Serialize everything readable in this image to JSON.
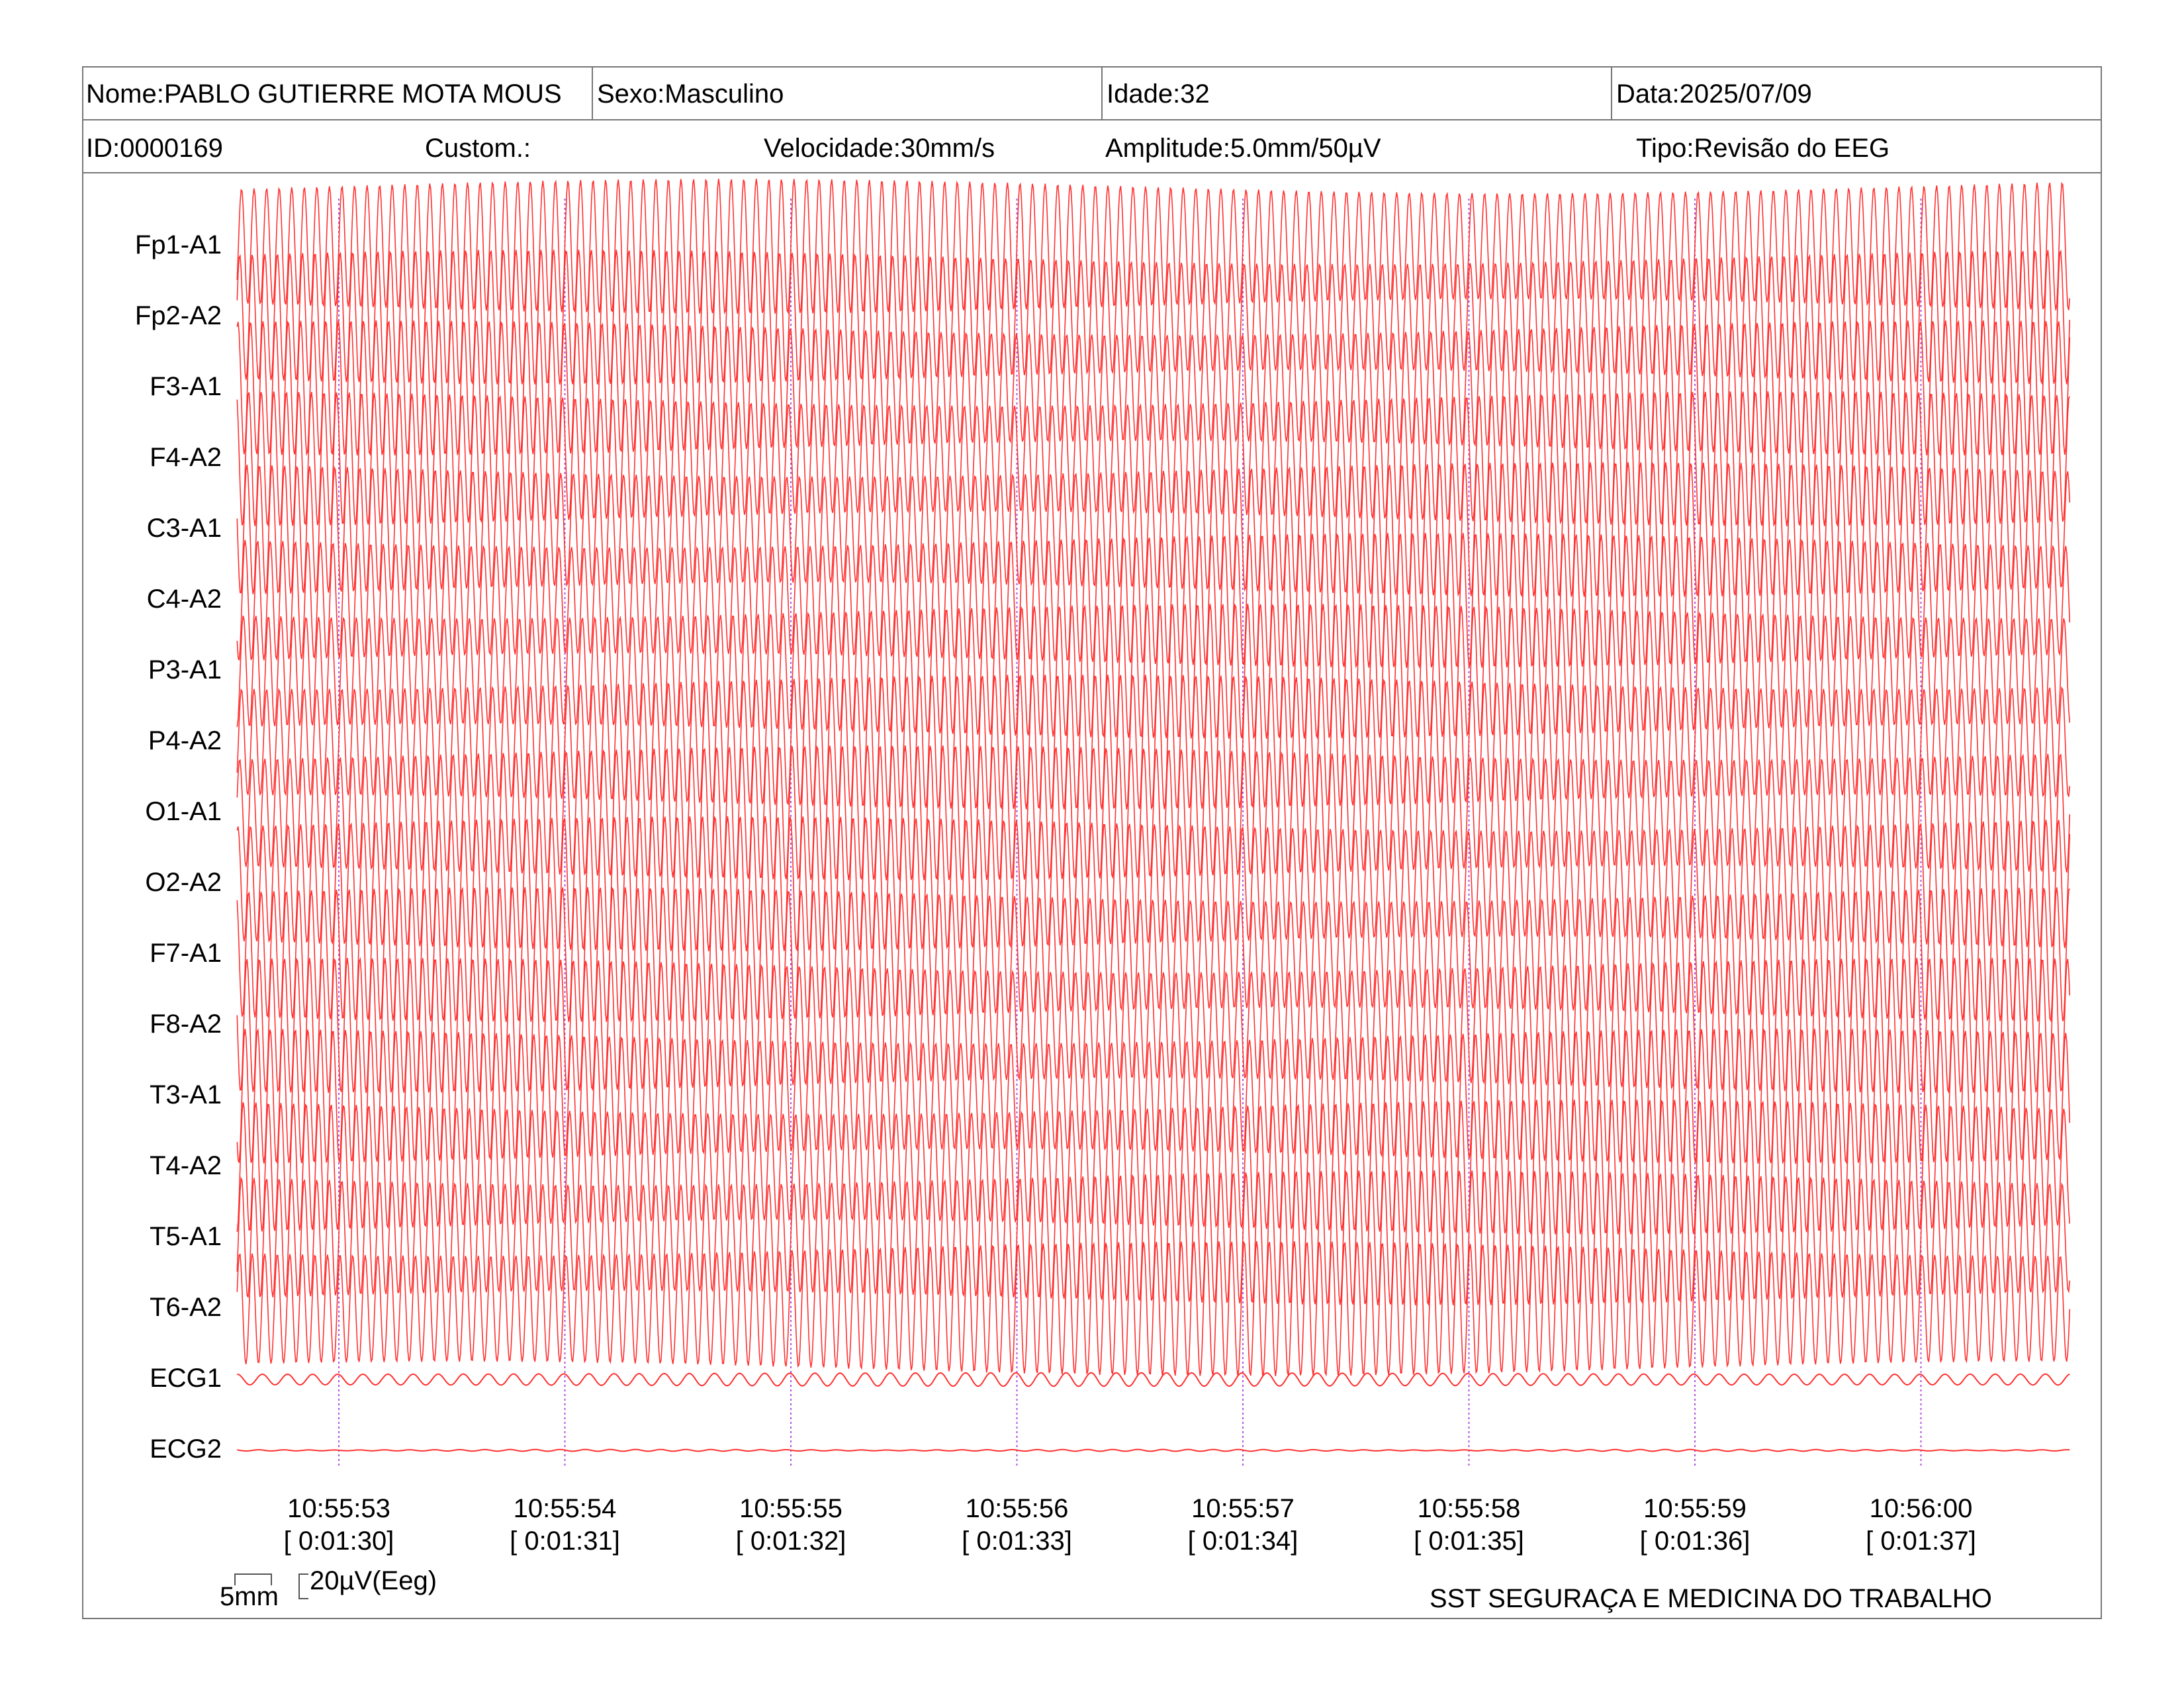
{
  "header": {
    "name": "Nome:PABLO GUTIERRE MOTA MOUS",
    "sex": "Sexo:Masculino",
    "age": "Idade:32",
    "date": "Data:2025/07/09",
    "id": "ID:0000169",
    "custom": "Custom.:",
    "speed": "Velocidade:30mm/s",
    "amplitude": "Amplitude:5.0mm/50µV",
    "type": "Tipo:Revisão do EEG"
  },
  "colors": {
    "trace": "#ff3030",
    "time_marker": "#b050e0",
    "border": "#777777"
  },
  "chart_data": {
    "type": "line",
    "channels": [
      "Fp1-A1",
      "Fp2-A2",
      "F3-A1",
      "F4-A2",
      "C3-A1",
      "C4-A2",
      "P3-A1",
      "P4-A2",
      "O1-A1",
      "O2-A2",
      "F7-A1",
      "F8-A2",
      "T3-A1",
      "T4-A2",
      "T5-A1",
      "T6-A2",
      "ECG1",
      "ECG2"
    ],
    "time_ticks": [
      {
        "clock": "10:55:53",
        "elapsed": "[ 0:01:30]"
      },
      {
        "clock": "10:55:54",
        "elapsed": "[ 0:01:31]"
      },
      {
        "clock": "10:55:55",
        "elapsed": "[ 0:01:32]"
      },
      {
        "clock": "10:55:56",
        "elapsed": "[ 0:01:33]"
      },
      {
        "clock": "10:55:57",
        "elapsed": "[ 0:01:34]"
      },
      {
        "clock": "10:55:58",
        "elapsed": "[ 0:01:35]"
      },
      {
        "clock": "10:55:59",
        "elapsed": "[ 0:01:36]"
      },
      {
        "clock": "10:56:00",
        "elapsed": "[ 0:01:37]"
      }
    ],
    "x_range_seconds": [
      -0.45,
      7.7
    ],
    "eeg_frequency_hz": 18,
    "ecg_frequency_hz": 9,
    "eeg_amplitude_uv": 80,
    "ecg1_amplitude_uv": 8,
    "ecg2_amplitude_uv": 2,
    "sensitivity_uv_per_mm": 10
  },
  "scale": {
    "time_label": "5mm",
    "amp_label": "20µV(Eeg)"
  },
  "footer": {
    "org": "SST SEGURAÇA E MEDICINA DO TRABALHO"
  }
}
